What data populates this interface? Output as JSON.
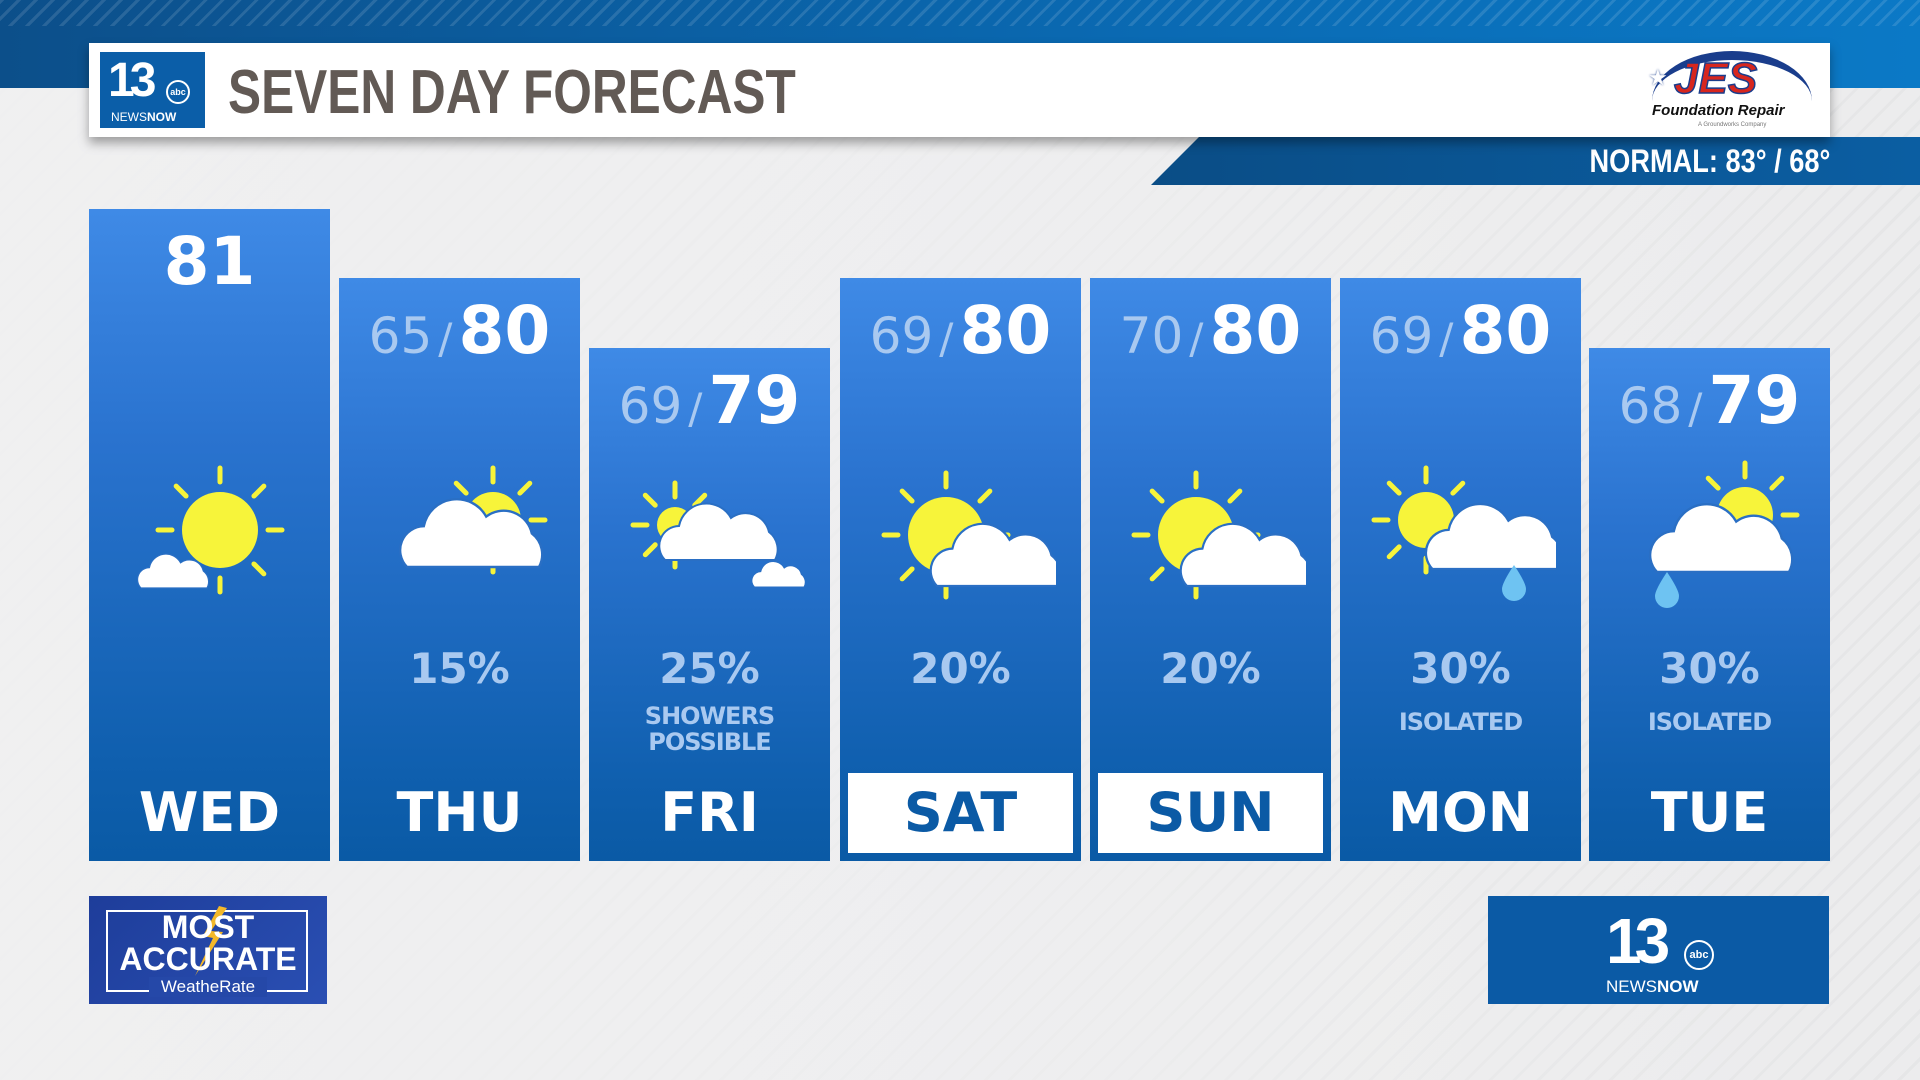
{
  "header": {
    "title": "SEVEN DAY FORECAST",
    "station_logo": {
      "number": "13",
      "network": "abc",
      "news": "NEWS",
      "now": "NOW"
    },
    "sponsor": {
      "name": "JES",
      "tagline": "Foundation Repair",
      "sub": "A Groundworks Company"
    },
    "normal": "NORMAL: 83° / 68°"
  },
  "colors": {
    "column_top": "#3f8ae6",
    "column_bottom": "#0a5aa5",
    "sun": "#f7f43a",
    "low_text": "#a9c9f0",
    "title": "#625a55"
  },
  "days": [
    {
      "day": "WED",
      "low": "",
      "high": "81",
      "precip": "",
      "note": "",
      "icon": "sunny-small-cloud-icon",
      "highlight": false
    },
    {
      "day": "THU",
      "low": "65",
      "high": "80",
      "precip": "15%",
      "note": "",
      "icon": "mostly-cloudy-icon",
      "highlight": false
    },
    {
      "day": "FRI",
      "low": "69",
      "high": "79",
      "precip": "25%",
      "note": "SHOWERS POSSIBLE",
      "icon": "partly-cloudy-small-sun-icon",
      "highlight": false
    },
    {
      "day": "SAT",
      "low": "69",
      "high": "80",
      "precip": "20%",
      "note": "",
      "icon": "partly-sunny-icon",
      "highlight": true
    },
    {
      "day": "SUN",
      "low": "70",
      "high": "80",
      "precip": "20%",
      "note": "",
      "icon": "partly-sunny-icon",
      "highlight": true
    },
    {
      "day": "MON",
      "low": "69",
      "high": "80",
      "precip": "30%",
      "note": "ISOLATED",
      "icon": "sun-cloud-rain-icon",
      "highlight": false
    },
    {
      "day": "TUE",
      "low": "68",
      "high": "79",
      "precip": "30%",
      "note": "ISOLATED",
      "icon": "cloud-sun-rain-icon",
      "highlight": false
    }
  ],
  "footer": {
    "most_accurate": {
      "line1": "MOST",
      "line2": "ACCURATE",
      "line3": "WeatheRate"
    },
    "brand": {
      "number": "13",
      "network": "abc",
      "news": "NEWS",
      "now": "NOW"
    }
  }
}
